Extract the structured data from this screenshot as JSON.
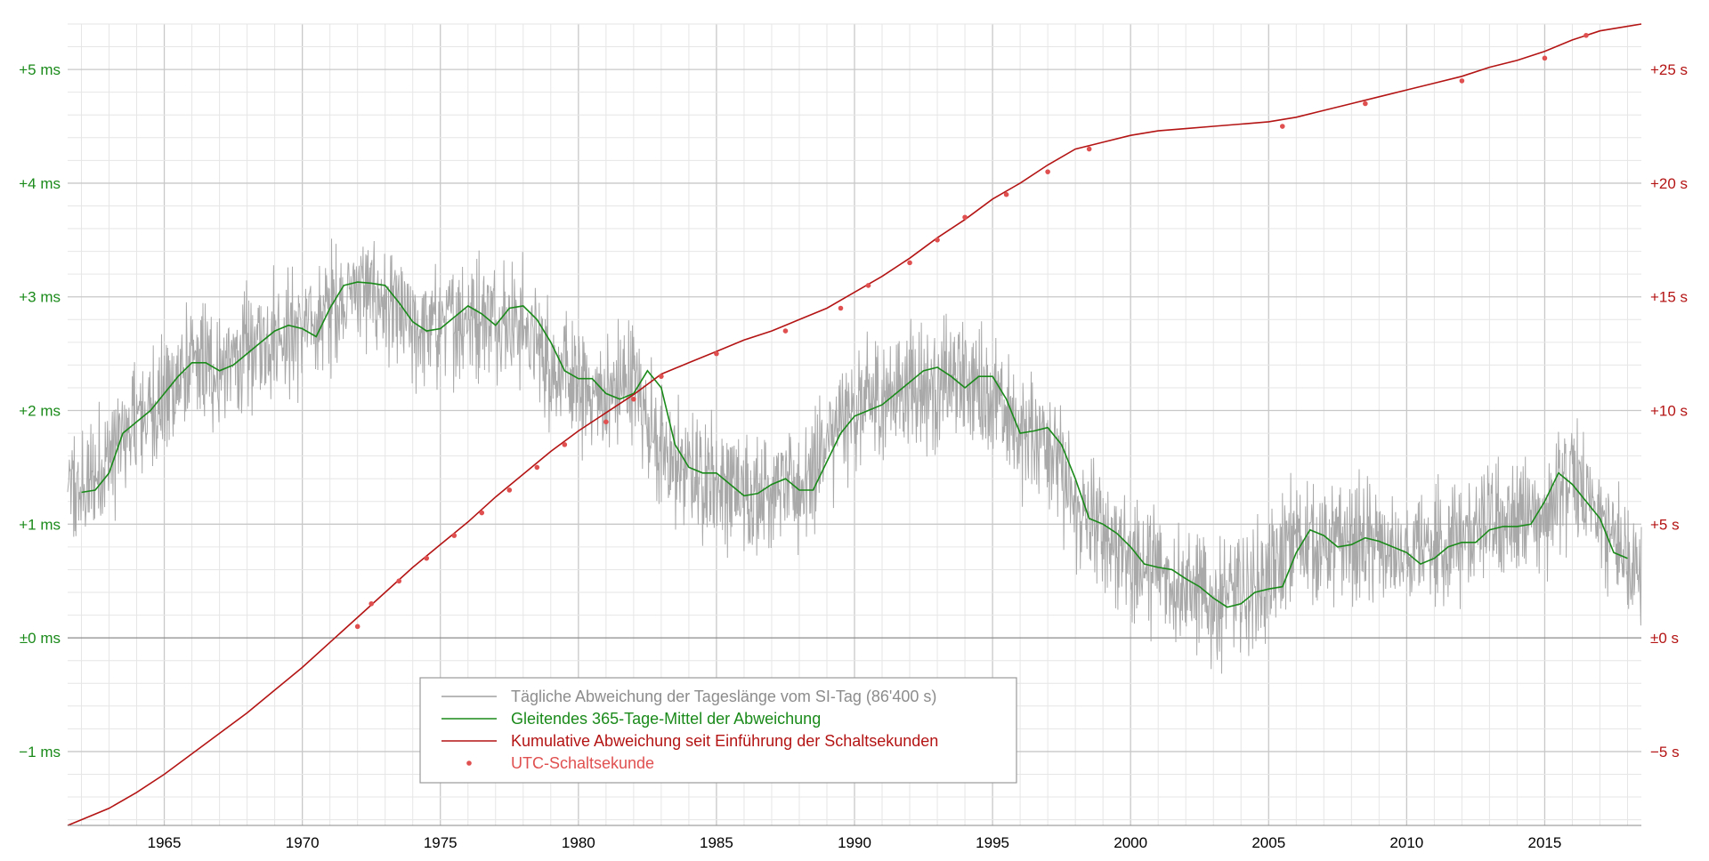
{
  "chart_data": {
    "type": "line",
    "title": "",
    "xlabel": "",
    "xlim": [
      1961.5,
      2018.5
    ],
    "x_ticks": [
      "1965",
      "1970",
      "1975",
      "1980",
      "1985",
      "1990",
      "1995",
      "2000",
      "2005",
      "2010",
      "2015"
    ],
    "y_left": {
      "label": "",
      "unit": "ms",
      "ylim": [
        -1.65,
        5.4
      ],
      "ticks": [
        {
          "value": 5,
          "label": "+5 ms"
        },
        {
          "value": 4,
          "label": "+4 ms"
        },
        {
          "value": 3,
          "label": "+3 ms"
        },
        {
          "value": 2,
          "label": "+2 ms"
        },
        {
          "value": 1,
          "label": "+1 ms"
        },
        {
          "value": 0,
          "label": "±0 ms"
        },
        {
          "value": -1,
          "label": "−1 ms"
        }
      ]
    },
    "y_right": {
      "label": "",
      "unit": "s",
      "ylim": [
        -8.25,
        27.0
      ],
      "ticks": [
        {
          "value": 25,
          "label": "+25 s"
        },
        {
          "value": 20,
          "label": "+20 s"
        },
        {
          "value": 15,
          "label": "+15 s"
        },
        {
          "value": 10,
          "label": "+10 s"
        },
        {
          "value": 5,
          "label": "+5 s"
        },
        {
          "value": 0,
          "label": "±0 s"
        },
        {
          "value": -5,
          "label": "−5 s"
        }
      ]
    },
    "grid": true,
    "legend_position": "bottom-center",
    "series": [
      {
        "name": "Tägliche Abweichung der Tageslänge vom SI-Tag (86'400 s)",
        "axis": "left",
        "color": "#a0a0a0",
        "style": "noisy-band",
        "center": {
          "x": [
            1961.5,
            1962,
            1963,
            1964,
            1965,
            1966,
            1967,
            1968,
            1969,
            1970,
            1971,
            1972,
            1973,
            1974,
            1975,
            1976,
            1977,
            1978,
            1979,
            1980,
            1981,
            1982,
            1983,
            1984,
            1985,
            1986,
            1987,
            1988,
            1989,
            1990,
            1991,
            1992,
            1993,
            1994,
            1995,
            1996,
            1997,
            1998,
            1999,
            2000,
            2001,
            2002,
            2003,
            2004,
            2005,
            2006,
            2007,
            2008,
            2009,
            2010,
            2011,
            2012,
            2013,
            2014,
            2015,
            2016,
            2017,
            2018,
            2018.5
          ],
          "y": [
            1.3,
            1.25,
            1.6,
            1.9,
            2.1,
            2.4,
            2.35,
            2.5,
            2.7,
            2.7,
            2.9,
            3.1,
            2.95,
            2.7,
            2.75,
            2.85,
            2.85,
            2.75,
            2.4,
            2.2,
            2.1,
            2.3,
            1.6,
            1.45,
            1.4,
            1.25,
            1.35,
            1.3,
            1.7,
            2.0,
            2.1,
            2.25,
            2.2,
            2.3,
            2.1,
            1.8,
            1.8,
            1.1,
            0.95,
            0.7,
            0.6,
            0.45,
            0.3,
            0.4,
            0.5,
            0.9,
            0.8,
            0.85,
            0.8,
            0.65,
            0.8,
            0.85,
            1.0,
            1.0,
            1.1,
            1.4,
            1.0,
            0.7,
            0.65
          ]
        },
        "amplitude_ms": 0.55
      },
      {
        "name": "Gleitendes 365-Tage-Mittel der Abweichung",
        "axis": "left",
        "color": "#1a8a1a",
        "x": [
          1962.0,
          1962.5,
          1963.0,
          1963.5,
          1964.0,
          1964.5,
          1965.0,
          1965.5,
          1966.0,
          1966.5,
          1967.0,
          1967.5,
          1968.0,
          1968.5,
          1969.0,
          1969.5,
          1970.0,
          1970.5,
          1971.0,
          1971.5,
          1972.0,
          1972.5,
          1973.0,
          1973.5,
          1974.0,
          1974.5,
          1975.0,
          1975.5,
          1976.0,
          1976.5,
          1977.0,
          1977.5,
          1978.0,
          1978.5,
          1979.0,
          1979.5,
          1980.0,
          1980.5,
          1981.0,
          1981.5,
          1982.0,
          1982.5,
          1983.0,
          1983.5,
          1984.0,
          1984.5,
          1985.0,
          1985.5,
          1986.0,
          1986.5,
          1987.0,
          1987.5,
          1988.0,
          1988.5,
          1989.0,
          1989.5,
          1990.0,
          1990.5,
          1991.0,
          1991.5,
          1992.0,
          1992.5,
          1993.0,
          1993.5,
          1994.0,
          1994.5,
          1995.0,
          1995.5,
          1996.0,
          1996.5,
          1997.0,
          1997.5,
          1998.0,
          1998.5,
          1999.0,
          1999.5,
          2000.0,
          2000.5,
          2001.0,
          2001.5,
          2002.0,
          2002.5,
          2003.0,
          2003.5,
          2004.0,
          2004.5,
          2005.0,
          2005.5,
          2006.0,
          2006.5,
          2007.0,
          2007.5,
          2008.0,
          2008.5,
          2009.0,
          2009.5,
          2010.0,
          2010.5,
          2011.0,
          2011.5,
          2012.0,
          2012.5,
          2013.0,
          2013.5,
          2014.0,
          2014.5,
          2015.0,
          2015.5,
          2016.0,
          2016.5,
          2017.0,
          2017.5,
          2018.0
        ],
        "y": [
          1.28,
          1.3,
          1.45,
          1.8,
          1.9,
          2.0,
          2.15,
          2.3,
          2.42,
          2.42,
          2.35,
          2.4,
          2.5,
          2.6,
          2.7,
          2.75,
          2.72,
          2.65,
          2.9,
          3.1,
          3.13,
          3.12,
          3.1,
          2.95,
          2.78,
          2.7,
          2.72,
          2.82,
          2.92,
          2.85,
          2.75,
          2.9,
          2.92,
          2.8,
          2.6,
          2.35,
          2.28,
          2.28,
          2.15,
          2.1,
          2.15,
          2.35,
          2.2,
          1.7,
          1.5,
          1.45,
          1.45,
          1.35,
          1.25,
          1.27,
          1.35,
          1.4,
          1.3,
          1.3,
          1.55,
          1.8,
          1.95,
          2.0,
          2.05,
          2.15,
          2.25,
          2.35,
          2.38,
          2.3,
          2.2,
          2.3,
          2.3,
          2.1,
          1.8,
          1.82,
          1.85,
          1.7,
          1.4,
          1.05,
          1.0,
          0.92,
          0.8,
          0.65,
          0.62,
          0.6,
          0.52,
          0.45,
          0.35,
          0.27,
          0.3,
          0.4,
          0.43,
          0.45,
          0.75,
          0.95,
          0.9,
          0.8,
          0.82,
          0.88,
          0.85,
          0.8,
          0.75,
          0.65,
          0.7,
          0.8,
          0.84,
          0.84,
          0.95,
          0.98,
          0.98,
          1.0,
          1.2,
          1.45,
          1.35,
          1.2,
          1.05,
          0.75,
          0.7
        ]
      },
      {
        "name": "Kumulative Abweichung seit Einführung der Schaltsekunden",
        "axis": "right",
        "color": "#b41414",
        "x": [
          1961.5,
          1962.0,
          1963.0,
          1964.0,
          1965.0,
          1966.0,
          1967.0,
          1968.0,
          1969.0,
          1970.0,
          1971.0,
          1972.0,
          1973.0,
          1974.0,
          1975.0,
          1976.0,
          1977.0,
          1978.0,
          1979.0,
          1980.0,
          1981.0,
          1982.0,
          1983.0,
          1984.0,
          1985.0,
          1986.0,
          1987.0,
          1988.0,
          1989.0,
          1990.0,
          1991.0,
          1992.0,
          1993.0,
          1994.0,
          1995.0,
          1996.0,
          1997.0,
          1998.0,
          1999.0,
          2000.0,
          2001.0,
          2002.0,
          2003.0,
          2004.0,
          2005.0,
          2006.0,
          2007.0,
          2008.0,
          2009.0,
          2010.0,
          2011.0,
          2012.0,
          2013.0,
          2014.0,
          2015.0,
          2016.0,
          2017.0,
          2018.0,
          2018.5
        ],
        "y": [
          -8.25,
          -8.0,
          -7.5,
          -6.8,
          -6.0,
          -5.1,
          -4.2,
          -3.3,
          -2.3,
          -1.3,
          -0.2,
          0.9,
          2.0,
          3.1,
          4.1,
          5.1,
          6.2,
          7.2,
          8.2,
          9.1,
          9.9,
          10.7,
          11.6,
          12.1,
          12.6,
          13.1,
          13.5,
          14.0,
          14.5,
          15.2,
          15.9,
          16.7,
          17.6,
          18.4,
          19.3,
          20.0,
          20.8,
          21.5,
          21.8,
          22.1,
          22.3,
          22.4,
          22.5,
          22.6,
          22.7,
          22.9,
          23.2,
          23.5,
          23.8,
          24.1,
          24.4,
          24.7,
          25.1,
          25.4,
          25.8,
          26.3,
          26.7,
          26.9,
          27.0
        ]
      },
      {
        "name": "UTC-Schaltsekunde",
        "axis": "right",
        "color": "#e05050",
        "type": "scatter",
        "x": [
          1972.0,
          1972.5,
          1973.5,
          1974.5,
          1975.5,
          1976.5,
          1977.5,
          1978.5,
          1979.5,
          1981.0,
          1982.0,
          1983.0,
          1985.0,
          1987.5,
          1989.5,
          1990.5,
          1992.0,
          1993.0,
          1994.0,
          1995.5,
          1997.0,
          1998.5,
          2005.5,
          2008.5,
          2012.0,
          2015.0,
          2016.5
        ],
        "y": [
          0.5,
          1.5,
          2.5,
          3.5,
          4.5,
          5.5,
          6.5,
          7.5,
          8.5,
          9.5,
          10.5,
          11.5,
          12.5,
          13.5,
          14.5,
          15.5,
          16.5,
          17.5,
          18.5,
          19.5,
          20.5,
          21.5,
          22.5,
          23.5,
          24.5,
          25.5,
          26.5
        ]
      }
    ]
  }
}
